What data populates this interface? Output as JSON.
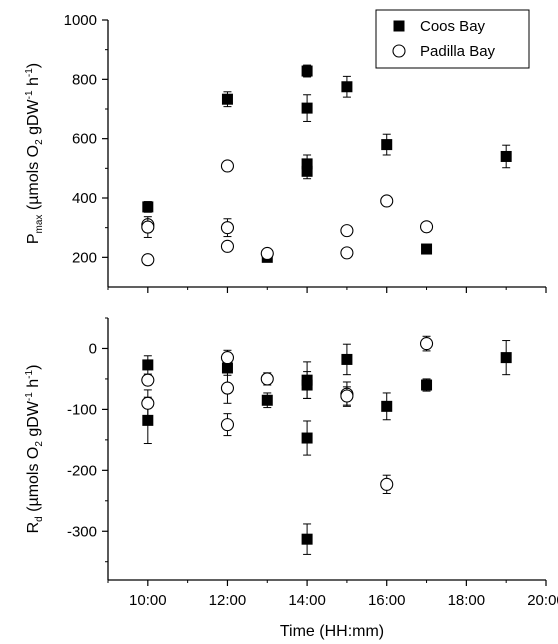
{
  "chart_data": [
    {
      "type": "scatter",
      "panel": "top",
      "ylabel": {
        "main": "P",
        "sub": "max",
        "rest": " (µmols O",
        "sub2": "2",
        "rest2": " gDW",
        "sup1": "-1",
        "mid": " h",
        "sup2": "-1",
        "end": ")"
      },
      "ylim": [
        100,
        1000
      ],
      "yticks": [
        200,
        400,
        600,
        800,
        1000
      ],
      "ytick_labels": [
        "200",
        "400",
        "600",
        "800",
        "1000"
      ],
      "legend": {
        "placement": "top-right",
        "entries": [
          "Coos Bay",
          "Padilla Bay"
        ]
      },
      "series": [
        {
          "name": "Coos Bay",
          "marker": "filled-square",
          "points": [
            {
              "x": 10,
              "y": 370,
              "err": 18
            },
            {
              "x": 12,
              "y": 733,
              "err": 25
            },
            {
              "x": 13,
              "y": 200,
              "err": 8
            },
            {
              "x": 14,
              "y": 828,
              "err": 20
            },
            {
              "x": 14,
              "y": 703,
              "err": 45
            },
            {
              "x": 14,
              "y": 515,
              "err": 30
            },
            {
              "x": 14,
              "y": 490,
              "err": 25
            },
            {
              "x": 15,
              "y": 775,
              "err": 35
            },
            {
              "x": 16,
              "y": 580,
              "err": 35
            },
            {
              "x": 17,
              "y": 228,
              "err": 0
            },
            {
              "x": 19,
              "y": 540,
              "err": 38
            }
          ]
        },
        {
          "name": "Padilla Bay",
          "marker": "open-circle",
          "points": [
            {
              "x": 10,
              "y": 310,
              "err": 12
            },
            {
              "x": 10,
              "y": 302,
              "err": 35
            },
            {
              "x": 10,
              "y": 192,
              "err": 12
            },
            {
              "x": 12,
              "y": 508,
              "err": 8
            },
            {
              "x": 12,
              "y": 300,
              "err": 30
            },
            {
              "x": 12,
              "y": 237,
              "err": 15
            },
            {
              "x": 13,
              "y": 213,
              "err": 12
            },
            {
              "x": 15,
              "y": 290,
              "err": 8
            },
            {
              "x": 15,
              "y": 215,
              "err": 10
            },
            {
              "x": 16,
              "y": 390,
              "err": 8
            },
            {
              "x": 17,
              "y": 303,
              "err": 8
            }
          ]
        }
      ]
    },
    {
      "type": "scatter",
      "panel": "bottom",
      "xlabel": "Time (HH:mm)",
      "xlim": [
        9,
        20
      ],
      "xticks": [
        10,
        12,
        14,
        16,
        18,
        20
      ],
      "xtick_labels": [
        "10:00",
        "12:00",
        "14:00",
        "16:00",
        "18:00",
        "20:00"
      ],
      "ylabel": {
        "main": "R",
        "sub": "d",
        "rest": " (µmols O",
        "sub2": "2",
        "rest2": " gDW",
        "sup1": "-1",
        "mid": " h",
        "sup2": "-1",
        "end": ")"
      },
      "ylim": [
        -380,
        50
      ],
      "yticks": [
        -300,
        -200,
        -100,
        0
      ],
      "ytick_labels": [
        "-300",
        "-200",
        "-100",
        "0"
      ],
      "series": [
        {
          "name": "Coos Bay",
          "marker": "filled-square",
          "points": [
            {
              "x": 10,
              "y": -27,
              "err": 15
            },
            {
              "x": 10,
              "y": -118,
              "err": 38
            },
            {
              "x": 12,
              "y": -32,
              "err": 12
            },
            {
              "x": 13,
              "y": -85,
              "err": 12
            },
            {
              "x": 14,
              "y": -52,
              "err": 30
            },
            {
              "x": 14,
              "y": -60,
              "err": 22
            },
            {
              "x": 14,
              "y": -147,
              "err": 28
            },
            {
              "x": 14,
              "y": -313,
              "err": 25
            },
            {
              "x": 15,
              "y": -18,
              "err": 25
            },
            {
              "x": 16,
              "y": -95,
              "err": 22
            },
            {
              "x": 17,
              "y": -60,
              "err": 10
            },
            {
              "x": 19,
              "y": -15,
              "err": 28
            }
          ]
        },
        {
          "name": "Padilla Bay",
          "marker": "open-circle",
          "points": [
            {
              "x": 10,
              "y": -52,
              "err": 8
            },
            {
              "x": 10,
              "y": -90,
              "err": 22
            },
            {
              "x": 12,
              "y": -15,
              "err": 12
            },
            {
              "x": 12,
              "y": -65,
              "err": 25
            },
            {
              "x": 12,
              "y": -125,
              "err": 18
            },
            {
              "x": 13,
              "y": -50,
              "err": 10
            },
            {
              "x": 15,
              "y": -75,
              "err": 20
            },
            {
              "x": 15,
              "y": -78,
              "err": 15
            },
            {
              "x": 16,
              "y": -223,
              "err": 15
            },
            {
              "x": 17,
              "y": 8,
              "err": 12
            }
          ]
        }
      ]
    }
  ]
}
